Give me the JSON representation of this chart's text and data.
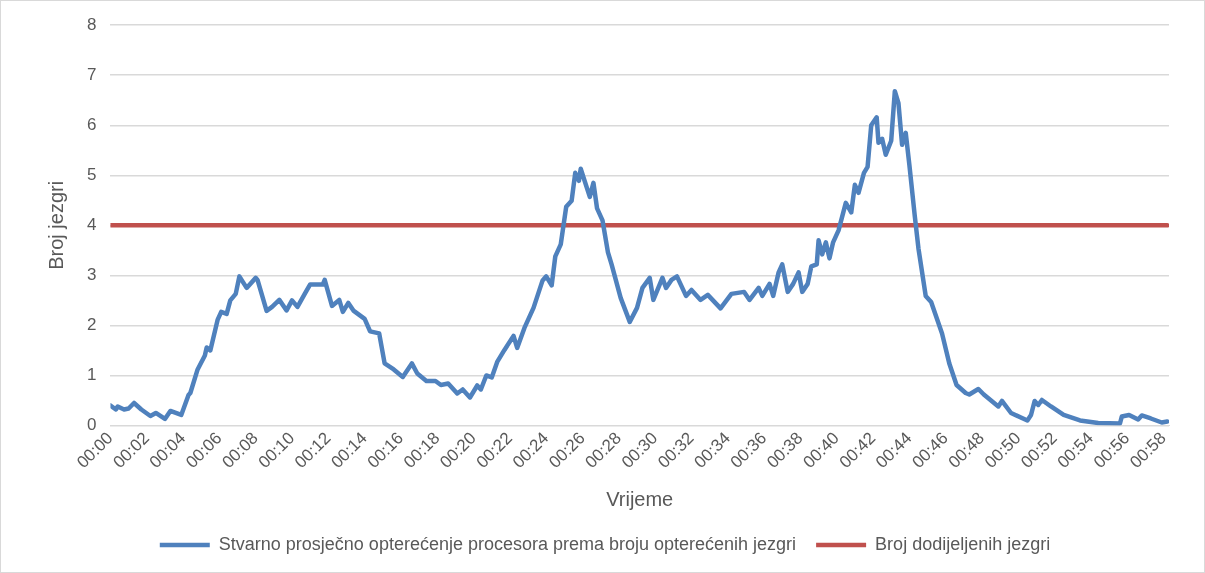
{
  "chart_data": {
    "type": "line",
    "xlabel": "Vrijeme",
    "ylabel": "Broj jezgri",
    "xlim": [
      0,
      58.3
    ],
    "ylim": [
      0,
      8
    ],
    "xticks": [
      {
        "value": 0,
        "label": "00:00"
      },
      {
        "value": 2,
        "label": "00:02"
      },
      {
        "value": 4,
        "label": "00:04"
      },
      {
        "value": 6,
        "label": "00:06"
      },
      {
        "value": 8,
        "label": "00:08"
      },
      {
        "value": 10,
        "label": "00:10"
      },
      {
        "value": 12,
        "label": "00:12"
      },
      {
        "value": 14,
        "label": "00:14"
      },
      {
        "value": 16,
        "label": "00:16"
      },
      {
        "value": 18,
        "label": "00:18"
      },
      {
        "value": 20,
        "label": "00:20"
      },
      {
        "value": 22,
        "label": "00:22"
      },
      {
        "value": 24,
        "label": "00:24"
      },
      {
        "value": 26,
        "label": "00:26"
      },
      {
        "value": 28,
        "label": "00:28"
      },
      {
        "value": 30,
        "label": "00:30"
      },
      {
        "value": 32,
        "label": "00:32"
      },
      {
        "value": 34,
        "label": "00:34"
      },
      {
        "value": 36,
        "label": "00:36"
      },
      {
        "value": 38,
        "label": "00:38"
      },
      {
        "value": 40,
        "label": "00:40"
      },
      {
        "value": 42,
        "label": "00:42"
      },
      {
        "value": 44,
        "label": "00:44"
      },
      {
        "value": 46,
        "label": "00:46"
      },
      {
        "value": 48,
        "label": "00:48"
      },
      {
        "value": 50,
        "label": "00:50"
      },
      {
        "value": 52,
        "label": "00:52"
      },
      {
        "value": 54,
        "label": "00:54"
      },
      {
        "value": 56,
        "label": "00:56"
      },
      {
        "value": 58,
        "label": "00:58"
      }
    ],
    "yticks": [
      0,
      1,
      2,
      3,
      4,
      5,
      6,
      7,
      8
    ],
    "grid": "y",
    "legend": "bottom",
    "marker": "none",
    "line_style": "solid",
    "series": [
      {
        "name": "Stvarno prosječno opterećenje procesora prema broju opterećenih jezgri",
        "color": "#4f81bd",
        "x": [
          0,
          0.3,
          0.4,
          0.75,
          1.0,
          1.3,
          1.7,
          2.2,
          2.5,
          3.0,
          3.3,
          3.9,
          4.3,
          4.4,
          4.8,
          5.2,
          5.3,
          5.5,
          5.9,
          6.1,
          6.4,
          6.6,
          6.9,
          7.1,
          7.5,
          8.0,
          8.1,
          8.6,
          8.9,
          9.3,
          9.7,
          10.0,
          10.3,
          10.7,
          11.0,
          11.7,
          11.8,
          12.2,
          12.6,
          12.8,
          13.1,
          13.4,
          14.0,
          14.3,
          14.8,
          15.1,
          15.6,
          16.1,
          16.6,
          16.9,
          17.4,
          17.9,
          18.2,
          18.6,
          19.1,
          19.4,
          19.8,
          20.2,
          20.4,
          20.7,
          21.0,
          21.3,
          21.7,
          22.2,
          22.4,
          22.8,
          23.3,
          23.8,
          24.0,
          24.3,
          24.5,
          24.8,
          25.1,
          25.4,
          25.6,
          25.8,
          25.9,
          26.4,
          26.6,
          26.8,
          27.1,
          27.4,
          27.6,
          28.1,
          28.6,
          29.0,
          29.3,
          29.7,
          29.9,
          30.4,
          30.6,
          30.9,
          31.2,
          31.7,
          32.0,
          32.5,
          32.9,
          33.6,
          34.2,
          34.9,
          35.2,
          35.7,
          35.9,
          36.3,
          36.5,
          36.8,
          37.0,
          37.3,
          37.6,
          37.9,
          38.1,
          38.4,
          38.6,
          38.9,
          39.0,
          39.2,
          39.4,
          39.6,
          39.8,
          40.1,
          40.5,
          40.8,
          41.0,
          41.2,
          41.5,
          41.7,
          41.9,
          42.2,
          42.3,
          42.5,
          42.7,
          43.0,
          43.2,
          43.4,
          43.6,
          43.8,
          44.0,
          44.3,
          44.5,
          44.9,
          45.2,
          45.8,
          46.2,
          46.6,
          47.1,
          47.3,
          47.8,
          48.1,
          48.9,
          49.1,
          49.6,
          50.5,
          50.7,
          50.9,
          51.1,
          51.3,
          51.8,
          52.5,
          53.4,
          54.4,
          55.6,
          55.7,
          56.1,
          56.6,
          56.8,
          57.3,
          57.9,
          58.2
        ],
        "values": [
          0.4,
          0.32,
          0.38,
          0.32,
          0.34,
          0.45,
          0.32,
          0.19,
          0.25,
          0.13,
          0.29,
          0.21,
          0.61,
          0.65,
          1.12,
          1.4,
          1.56,
          1.5,
          2.11,
          2.27,
          2.23,
          2.5,
          2.63,
          2.98,
          2.75,
          2.95,
          2.91,
          2.29,
          2.37,
          2.51,
          2.3,
          2.5,
          2.37,
          2.63,
          2.82,
          2.82,
          2.91,
          2.39,
          2.51,
          2.27,
          2.45,
          2.29,
          2.13,
          1.88,
          1.84,
          1.24,
          1.12,
          0.97,
          1.24,
          1.04,
          0.89,
          0.89,
          0.81,
          0.84,
          0.64,
          0.72,
          0.56,
          0.8,
          0.72,
          1.0,
          0.96,
          1.27,
          1.51,
          1.79,
          1.55,
          1.95,
          2.35,
          2.9,
          2.98,
          2.8,
          3.38,
          3.62,
          4.37,
          4.49,
          5.05,
          4.89,
          5.13,
          4.57,
          4.85,
          4.34,
          4.1,
          3.46,
          3.22,
          2.55,
          2.07,
          2.35,
          2.75,
          2.95,
          2.51,
          2.95,
          2.75,
          2.91,
          2.98,
          2.59,
          2.71,
          2.51,
          2.61,
          2.34,
          2.63,
          2.67,
          2.51,
          2.75,
          2.59,
          2.83,
          2.59,
          3.06,
          3.22,
          2.67,
          2.83,
          3.06,
          2.67,
          2.83,
          3.18,
          3.22,
          3.7,
          3.42,
          3.66,
          3.34,
          3.66,
          3.9,
          4.45,
          4.26,
          4.81,
          4.65,
          5.05,
          5.17,
          6.0,
          6.16,
          5.65,
          5.73,
          5.41,
          5.69,
          6.68,
          6.44,
          5.61,
          5.85,
          5.21,
          4.18,
          3.54,
          2.59,
          2.47,
          1.84,
          1.24,
          0.81,
          0.65,
          0.62,
          0.73,
          0.62,
          0.38,
          0.49,
          0.25,
          0.1,
          0.21,
          0.49,
          0.41,
          0.51,
          0.38,
          0.21,
          0.1,
          0.05,
          0.04,
          0.18,
          0.21,
          0.12,
          0.2,
          0.14,
          0.06,
          0.08
        ]
      },
      {
        "name": "Broj dodijeljenih jezgri",
        "color": "#c0504d",
        "x": [
          0,
          58.2
        ],
        "values": [
          4,
          4
        ]
      }
    ]
  }
}
